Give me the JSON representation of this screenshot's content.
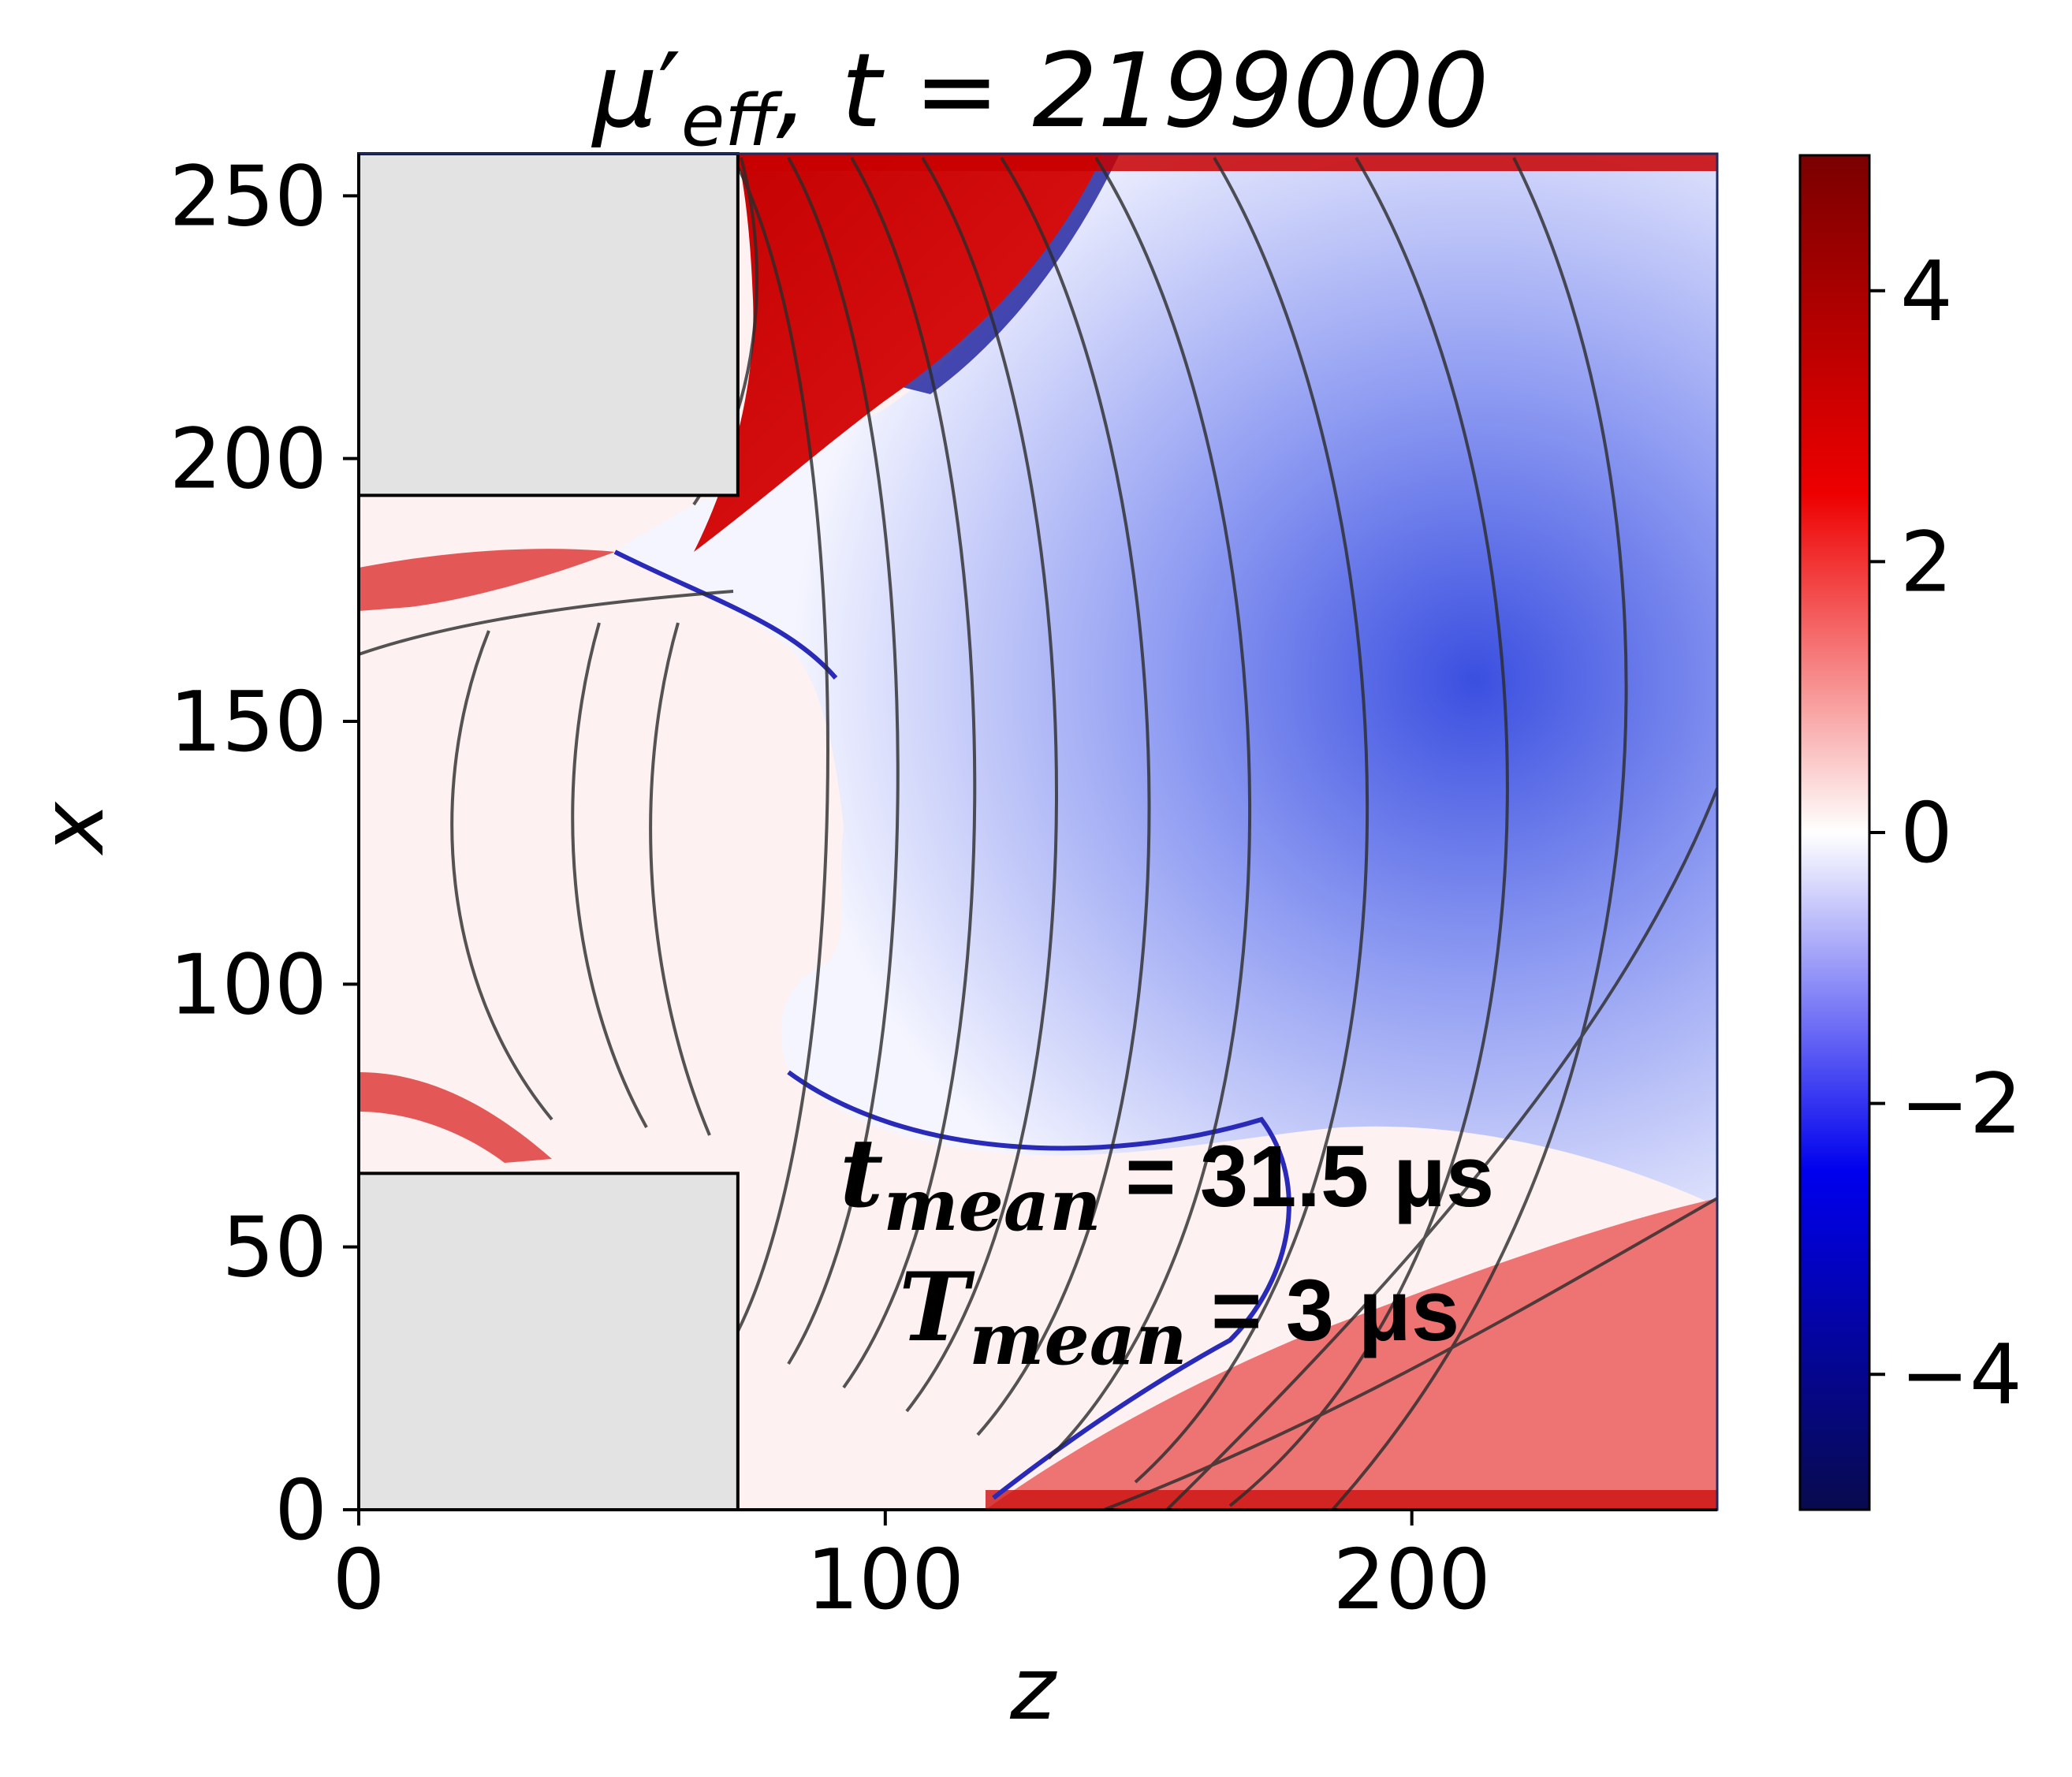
{
  "chart_data": {
    "type": "heatmap",
    "title": {
      "symbol": "μ",
      "prime": "′",
      "subscript": "eff",
      "rest": ", t = 2199000"
    },
    "xlabel": "z",
    "ylabel": "x",
    "xlim": [
      0,
      258
    ],
    "ylim": [
      0,
      258
    ],
    "xticks": [
      0,
      100,
      200
    ],
    "yticks": [
      0,
      50,
      100,
      150,
      200,
      250
    ],
    "colorbar": {
      "range": [
        -5,
        5
      ],
      "ticks": [
        4,
        2,
        0,
        -2,
        -4
      ],
      "tick_labels": [
        "4",
        "2",
        "0",
        "−2",
        "−4"
      ],
      "colors": [
        "#080a4d",
        "#0000ee",
        "#ffffff",
        "#ee0000",
        "#7a0000"
      ]
    },
    "obstacles": [
      {
        "z": [
          0,
          72
        ],
        "x": [
          193,
          258
        ],
        "fill": "#e3e3e3"
      },
      {
        "z": [
          0,
          72
        ],
        "x": [
          0,
          64
        ],
        "fill": "#e3e3e3"
      }
    ],
    "annotations": [
      {
        "var": "t",
        "sub": "mean",
        "value": " = 31.5 μs"
      },
      {
        "var": "T",
        "sub": "mean",
        "value": " = 3 μs"
      }
    ]
  }
}
